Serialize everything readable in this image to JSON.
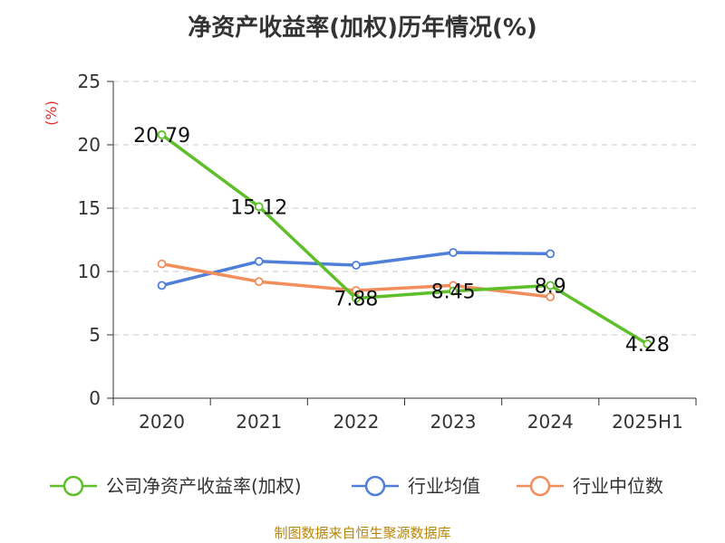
{
  "chart_data": {
    "type": "line",
    "title": "净资产收益率(加权)历年情况(%)",
    "ylabel": "(%)",
    "categories": [
      "2020",
      "2021",
      "2022",
      "2023",
      "2024",
      "2025H1"
    ],
    "ylim": [
      0,
      25
    ],
    "yticks": [
      "0",
      "5",
      "10",
      "15",
      "20",
      "25"
    ],
    "grid": true,
    "legend_position": "bottom",
    "series": [
      {
        "name": "公司净资产收益率(加权)",
        "color": "#5fbf2a",
        "values": [
          20.79,
          15.12,
          7.88,
          8.45,
          8.9,
          4.28
        ],
        "labels": [
          "20.79",
          "15.12",
          "7.88",
          "8.45",
          "8.9",
          "4.28"
        ]
      },
      {
        "name": "行业均值",
        "color": "#4f7fd8",
        "values": [
          8.9,
          10.8,
          10.5,
          11.5,
          11.4,
          null
        ]
      },
      {
        "name": "行业中位数",
        "color": "#f28d5c",
        "values": [
          10.6,
          9.2,
          8.5,
          8.9,
          8.0,
          null
        ]
      }
    ]
  },
  "source": "制图数据来自恒生聚源数据库"
}
